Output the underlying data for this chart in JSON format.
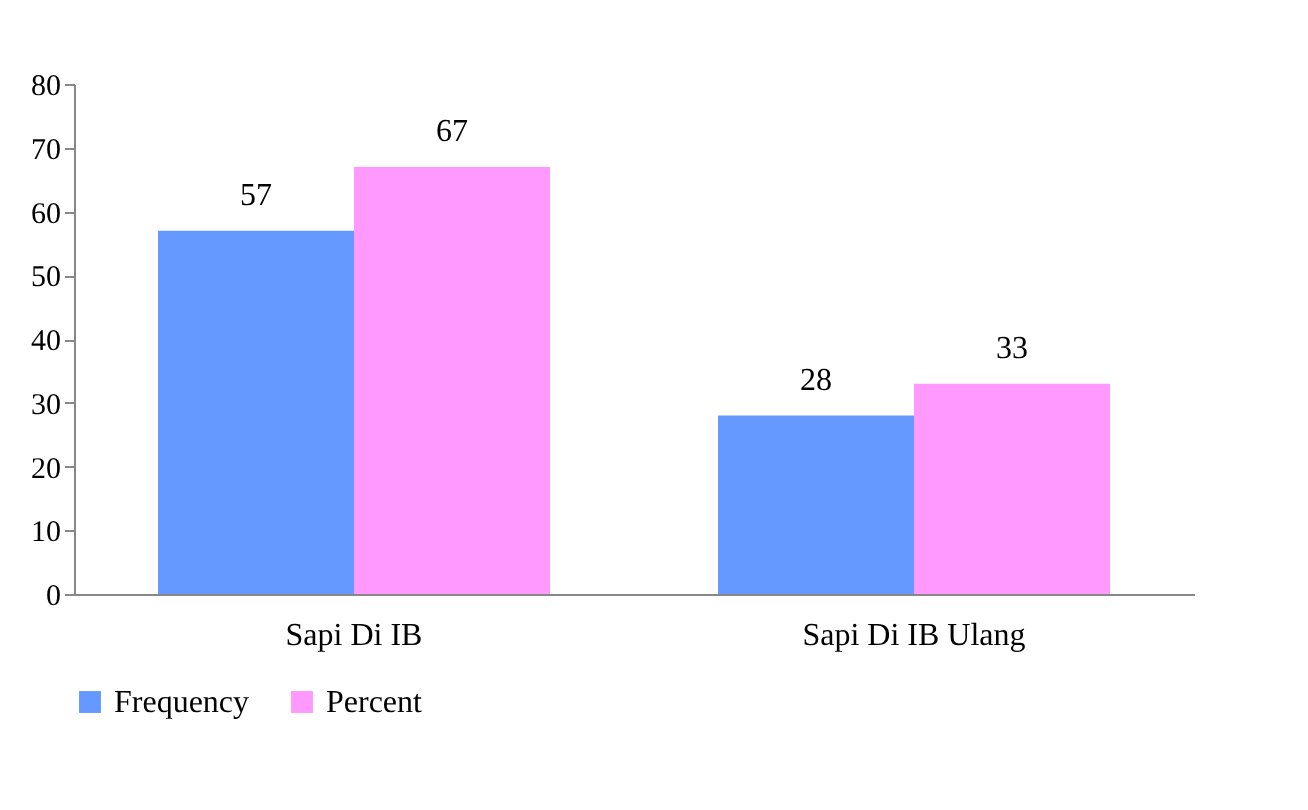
{
  "chart_data": {
    "type": "bar",
    "categories": [
      "Sapi Di IB",
      "Sapi Di IB Ulang"
    ],
    "series": [
      {
        "name": "Frequency",
        "color": "#6699ff",
        "values": [
          57,
          28
        ]
      },
      {
        "name": "Percent",
        "color": "#ff99ff",
        "values": [
          67,
          33
        ]
      }
    ],
    "ylim": [
      0,
      80
    ],
    "yticks": [
      0,
      10,
      20,
      30,
      40,
      50,
      60,
      70,
      80
    ],
    "grid": false,
    "legend": "bottom",
    "data_labels": true
  }
}
